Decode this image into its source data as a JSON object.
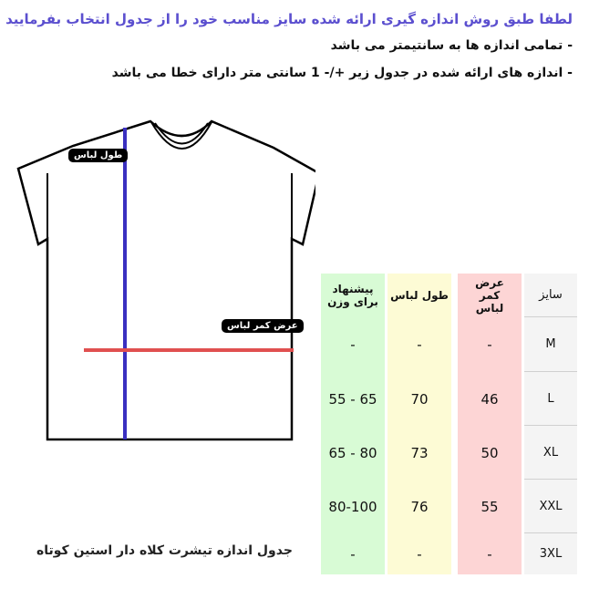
{
  "title": "لطفا طبق روش اندازه گیری ارائه شده سایز مناسب خود را از جدول انتخاب بفرمایید",
  "notes": [
    "- تمامی اندازه ها به سانتیمتر می باشد",
    "- اندازه های ارائه شده در جدول زیر +/- 1 سانتی متر دارای خطا می باشد"
  ],
  "diagram": {
    "length_label": "طول لباس",
    "width_label": "عرض کمر لباس",
    "length_color": "#3a2fc0",
    "width_color": "#e05050"
  },
  "table": {
    "headers": {
      "size": "سایز",
      "waist": "عرض کمر لباس",
      "length": "طول لباس",
      "weight": "پیشنهاد برای وزن"
    },
    "colors": {
      "size": "#f4f4f4",
      "waist": "#fdd5d5",
      "length": "#fdfbd5",
      "weight": "#d8fbd5"
    },
    "rows": [
      {
        "size": "M",
        "waist": "-",
        "length": "-",
        "weight": "-"
      },
      {
        "size": "L",
        "waist": "46",
        "length": "70",
        "weight": "55 - 65"
      },
      {
        "size": "XL",
        "waist": "50",
        "length": "73",
        "weight": "65 - 80"
      },
      {
        "size": "XXL",
        "waist": "55",
        "length": "76",
        "weight": "80-100"
      },
      {
        "size": "3XL",
        "waist": "-",
        "length": "-",
        "weight": "-"
      }
    ]
  },
  "caption": "جدول اندازه تیشرت کلاه دار استین کوتاه"
}
